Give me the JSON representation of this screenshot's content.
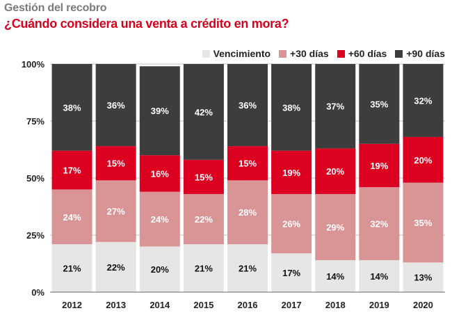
{
  "header": {
    "supertitle": "Gestión del recobro",
    "title": "¿Cuándo considera una venta a crédito en mora?"
  },
  "colors": {
    "Vencimiento": "#e6e6e6",
    "+30 días": "#d99595",
    "+60 días": "#dc0021",
    "+90 días": "#3d3d3d"
  },
  "chart_data": {
    "type": "bar",
    "stacked": true,
    "categories": [
      "2012",
      "2013",
      "2014",
      "2015",
      "2016",
      "2017",
      "2018",
      "2019",
      "2020"
    ],
    "series": [
      {
        "name": "Vencimiento",
        "values": [
          21,
          22,
          20,
          21,
          21,
          17,
          14,
          14,
          13
        ],
        "labels": [
          "21%",
          "22%",
          "20%",
          "21%",
          "21%",
          "17%",
          "14%",
          "14%",
          "13%"
        ]
      },
      {
        "name": "+30 días",
        "values": [
          24,
          27,
          24,
          22,
          28,
          26,
          29,
          32,
          35
        ],
        "labels": [
          "24%",
          "27%",
          "24%",
          "22%",
          "28%",
          "26%",
          "29%",
          "32%",
          "35%"
        ]
      },
      {
        "name": "+60 días",
        "values": [
          17,
          15,
          16,
          15,
          15,
          19,
          20,
          19,
          20
        ],
        "labels": [
          "17%",
          "15%",
          "16%",
          "15%",
          "15%",
          "19%",
          "20%",
          "19%",
          "20%"
        ]
      },
      {
        "name": "+90 días",
        "values": [
          38,
          36,
          39,
          42,
          36,
          38,
          37,
          35,
          32
        ],
        "labels": [
          "38%",
          "36%",
          "39%",
          "42%",
          "36%",
          "38%",
          "37%",
          "35%",
          "32%"
        ]
      }
    ],
    "yticks": [
      "0%",
      "25%",
      "50%",
      "75%",
      "100%"
    ],
    "ytick_values": [
      0,
      25,
      50,
      75,
      100
    ],
    "ylim": [
      0,
      100
    ],
    "legend_position": "top-right",
    "grid": true
  }
}
